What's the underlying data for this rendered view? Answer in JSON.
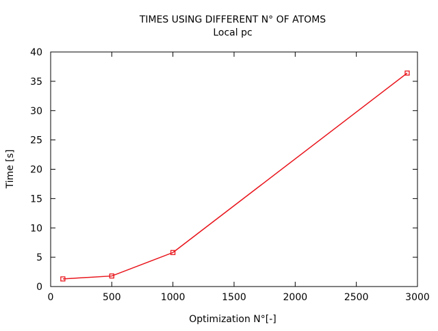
{
  "chart_data": {
    "type": "line",
    "title": "TIMES USING DIFFERENT N° OF ATOMS",
    "subtitle": "Local pc",
    "xlabel": "Optimization N°[-]",
    "ylabel": "Time [s]",
    "xlim": [
      0,
      3000
    ],
    "ylim": [
      0,
      40
    ],
    "xticks": [
      0,
      500,
      1000,
      1500,
      2000,
      2500,
      3000
    ],
    "yticks": [
      0,
      5,
      10,
      15,
      20,
      25,
      30,
      35,
      40
    ],
    "xtick_labels": [
      "0",
      "500",
      "1000",
      "1500",
      "2000",
      "2500",
      "3000"
    ],
    "ytick_labels": [
      "0",
      "5",
      "10",
      "15",
      "20",
      "25",
      "30",
      "35",
      "40"
    ],
    "grid": false,
    "legend": "none",
    "series": [
      {
        "color": "#e8141b",
        "marker": "square",
        "x": [
          100,
          500,
          1000,
          2916
        ],
        "y": [
          1.3,
          1.8,
          5.8,
          36.4
        ]
      }
    ]
  }
}
